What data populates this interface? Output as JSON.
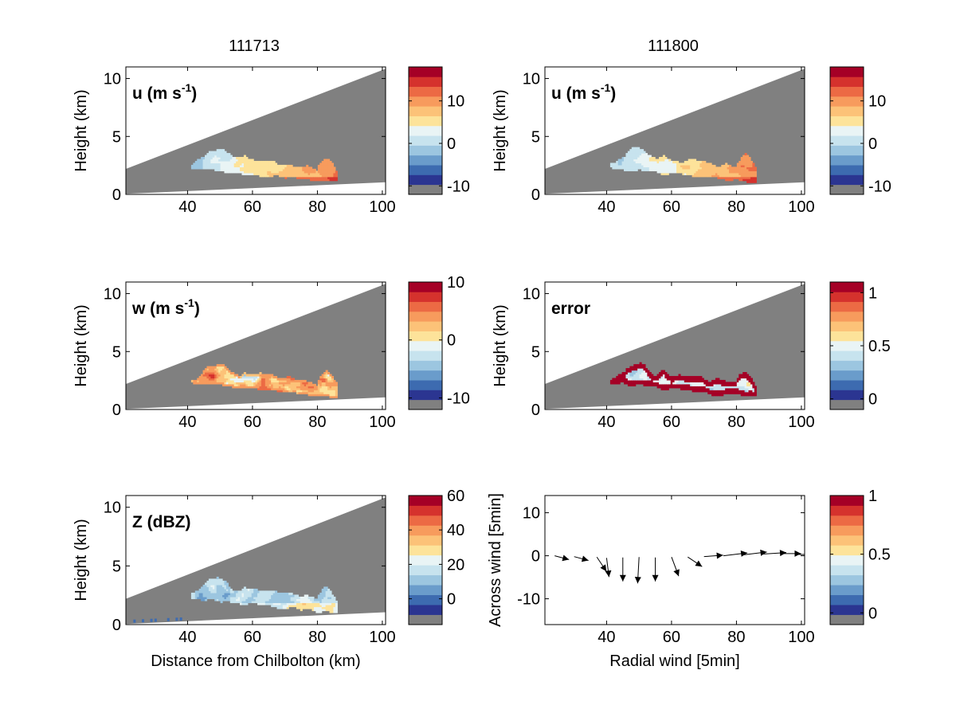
{
  "figure": {
    "column_titles": [
      "111713",
      "111800"
    ]
  },
  "colormap": {
    "bad_color": "#808080",
    "colors": [
      "#2b3591",
      "#3d6bb0",
      "#6a9ccb",
      "#9cc6e0",
      "#c7e3ee",
      "#e9f4f5",
      "#fde39a",
      "#fcc278",
      "#f79b5d",
      "#ec6a44",
      "#d5322d",
      "#a50026"
    ]
  },
  "chart_data": [
    {
      "type": "heatmap",
      "id": "u_111713",
      "column": 0,
      "row": 0,
      "label_main": "u (m s",
      "label_sup": "-1",
      "label_end": ")",
      "xlabel": "",
      "ylabel": "Height (km)",
      "xlim": [
        21,
        101
      ],
      "ylim": [
        0,
        11
      ],
      "xticks": [
        "40",
        "60",
        "80",
        "100"
      ],
      "yticks": [
        "0",
        "5",
        "10"
      ],
      "colorbar": {
        "lim": [
          -12,
          18
        ],
        "ticks": [
          "-10",
          "0",
          "10"
        ],
        "tick_values": [
          -10,
          0,
          10
        ]
      },
      "field_pattern": "u"
    },
    {
      "type": "heatmap",
      "id": "u_111800",
      "column": 1,
      "row": 0,
      "label_main": "u (m s",
      "label_sup": "-1",
      "label_end": ")",
      "xlabel": "",
      "ylabel": "Height (km)",
      "xlim": [
        21,
        101
      ],
      "ylim": [
        0,
        11
      ],
      "xticks": [
        "40",
        "60",
        "80",
        "100"
      ],
      "yticks": [
        "0",
        "5",
        "10"
      ],
      "colorbar": {
        "lim": [
          -12,
          18
        ],
        "ticks": [
          "-10",
          "0",
          "10"
        ],
        "tick_values": [
          -10,
          0,
          10
        ]
      },
      "field_pattern": "u"
    },
    {
      "type": "heatmap",
      "id": "w_111713",
      "column": 0,
      "row": 1,
      "label_main": "w (m s",
      "label_sup": "-1",
      "label_end": ")",
      "xlabel": "",
      "ylabel": "Height (km)",
      "xlim": [
        21,
        101
      ],
      "ylim": [
        0,
        11
      ],
      "xticks": [
        "40",
        "60",
        "80",
        "100"
      ],
      "yticks": [
        "0",
        "5",
        "10"
      ],
      "colorbar": {
        "lim": [
          -12,
          10
        ],
        "ticks": [
          "-10",
          "0",
          "10"
        ],
        "tick_values": [
          -10,
          0,
          10
        ]
      },
      "field_pattern": "w"
    },
    {
      "type": "heatmap",
      "id": "error_111800",
      "column": 1,
      "row": 1,
      "label_main": "error",
      "label_sup": "",
      "label_end": "",
      "xlabel": "",
      "ylabel": "Height (km)",
      "xlim": [
        21,
        101
      ],
      "ylim": [
        0,
        11
      ],
      "xticks": [
        "40",
        "60",
        "80",
        "100"
      ],
      "yticks": [
        "0",
        "5",
        "10"
      ],
      "colorbar": {
        "lim": [
          -0.1,
          1.1
        ],
        "ticks": [
          "0",
          "0.5",
          "1"
        ],
        "tick_values": [
          0,
          0.5,
          1
        ]
      },
      "field_pattern": "error"
    },
    {
      "type": "heatmap",
      "id": "Z_111713",
      "column": 0,
      "row": 2,
      "label_main": "Z (dBZ)",
      "label_sup": "",
      "label_end": "",
      "xlabel": "Distance from Chilbolton (km)",
      "ylabel": "Height (km)",
      "xlim": [
        21,
        101
      ],
      "ylim": [
        0,
        11
      ],
      "xticks": [
        "40",
        "60",
        "80",
        "100"
      ],
      "yticks": [
        "0",
        "5",
        "10"
      ],
      "colorbar": {
        "lim": [
          -15,
          60
        ],
        "ticks": [
          "0",
          "20",
          "40",
          "60"
        ],
        "tick_values": [
          0,
          20,
          40,
          60
        ]
      },
      "field_pattern": "Z"
    },
    {
      "type": "quiver",
      "id": "wind_111800",
      "column": 1,
      "row": 2,
      "xlabel": "Radial wind [5min]",
      "ylabel": "Across wind [5min]",
      "xlim": [
        21,
        101
      ],
      "ylim": [
        -16,
        14
      ],
      "xticks": [
        "40",
        "60",
        "80",
        "100"
      ],
      "yticks": [
        "-10",
        "0",
        "10"
      ],
      "colorbar": {
        "lim": [
          -0.1,
          1.0
        ],
        "ticks": [
          "0",
          "0.5",
          "1"
        ],
        "tick_values": [
          0,
          0.5,
          1
        ]
      },
      "vectors": [
        {
          "x": 24,
          "y": 0,
          "u": 3,
          "v": -0.8
        },
        {
          "x": 30,
          "y": -0.2,
          "u": 3,
          "v": -0.8
        },
        {
          "x": 37,
          "y": -0.3,
          "u": 2,
          "v": -3
        },
        {
          "x": 40,
          "y": -0.5,
          "u": 0.5,
          "v": -4
        },
        {
          "x": 45,
          "y": -0.4,
          "u": 0,
          "v": -5
        },
        {
          "x": 50,
          "y": -0.3,
          "u": -0.3,
          "v": -5.5
        },
        {
          "x": 55,
          "y": -0.4,
          "u": 0,
          "v": -5
        },
        {
          "x": 60,
          "y": -0.3,
          "u": 1.5,
          "v": -4
        },
        {
          "x": 65,
          "y": -0.3,
          "u": 3,
          "v": -2
        },
        {
          "x": 70,
          "y": -0.2,
          "u": 4,
          "v": 0.3
        },
        {
          "x": 76,
          "y": 0,
          "u": 5,
          "v": 0.6
        },
        {
          "x": 82,
          "y": 0.2,
          "u": 5,
          "v": 0.6
        },
        {
          "x": 88,
          "y": 0.4,
          "u": 5,
          "v": 0.3
        },
        {
          "x": 94,
          "y": 0.5,
          "u": 4,
          "v": 0
        },
        {
          "x": 99,
          "y": 0.3,
          "u": 4,
          "v": 0
        }
      ]
    }
  ]
}
